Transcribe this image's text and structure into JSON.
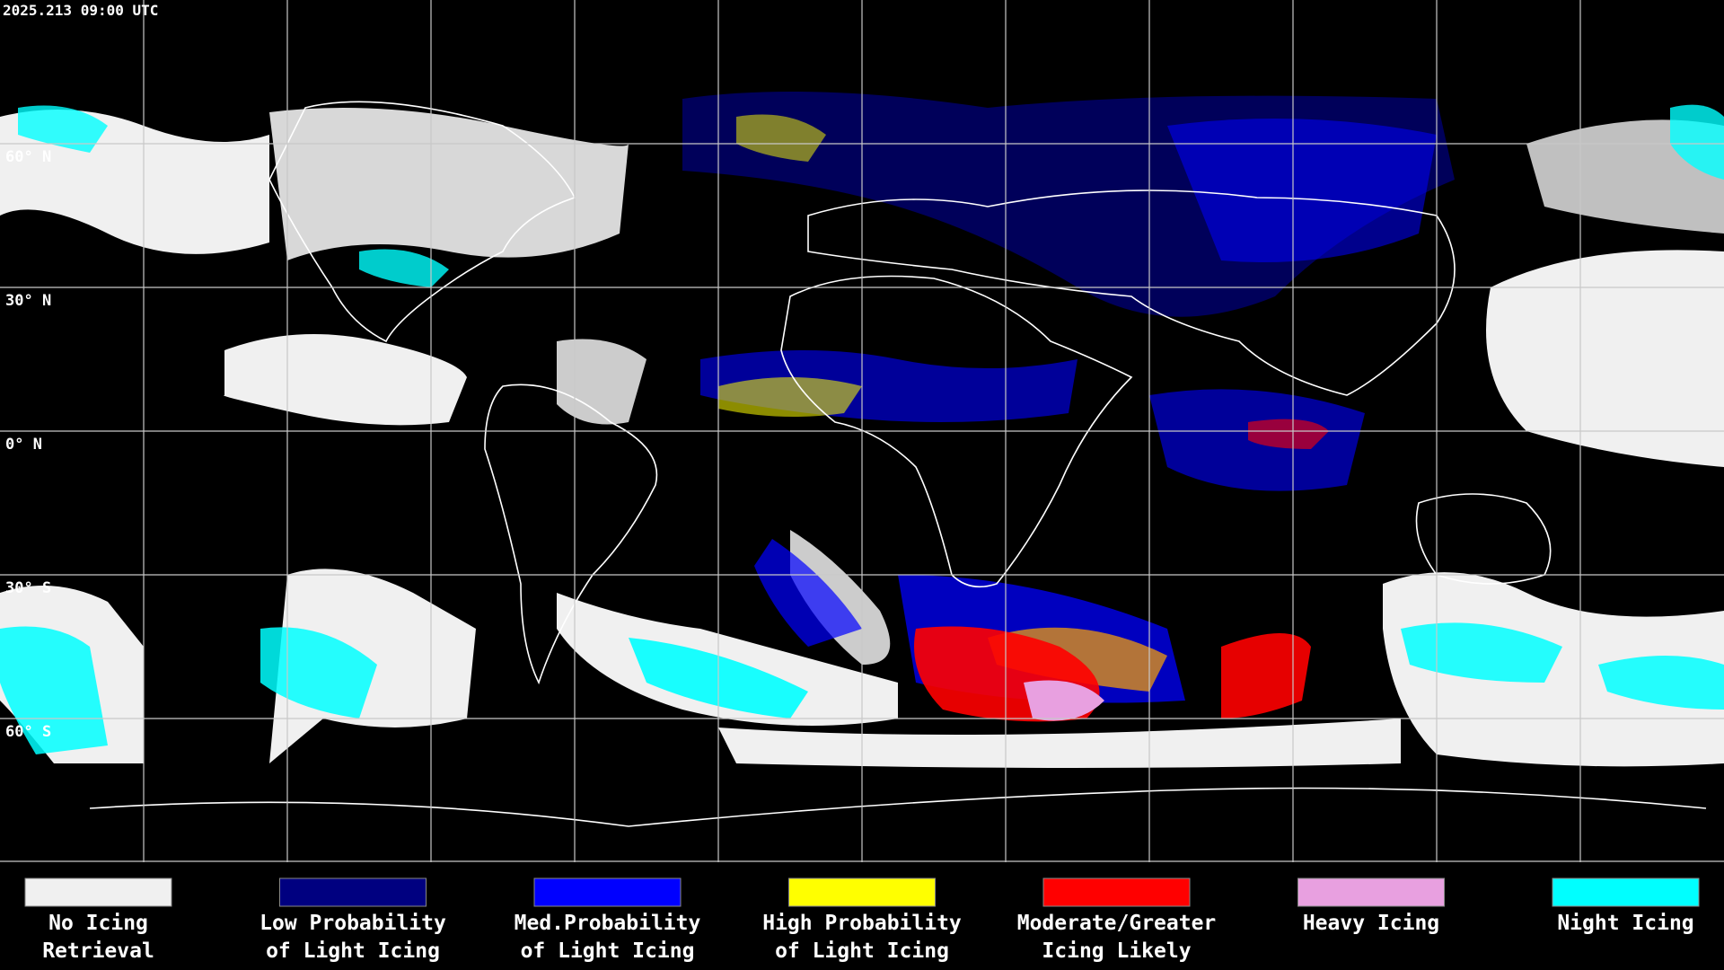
{
  "header": {
    "timestamp": "2025.213 09:00 UTC"
  },
  "latitude_labels": [
    "60° N",
    "30° N",
    "0° N",
    "30° S",
    "60° S"
  ],
  "legend": [
    {
      "lines": [
        "No Icing",
        "Retrieval"
      ],
      "color": "#f0f0f0"
    },
    {
      "lines": [
        "Low Probability",
        "of Light Icing"
      ],
      "color": "#000080"
    },
    {
      "lines": [
        "Med.Probability",
        "of Light Icing"
      ],
      "color": "#0000ff"
    },
    {
      "lines": [
        "High Probability",
        "of Light Icing"
      ],
      "color": "#ffff00"
    },
    {
      "lines": [
        "Moderate/Greater",
        "Icing Likely"
      ],
      "color": "#ff0000"
    },
    {
      "lines": [
        "Heavy Icing"
      ],
      "color": "#e8a0e0"
    },
    {
      "lines": [
        "Night Icing"
      ],
      "color": "#00ffff"
    }
  ]
}
